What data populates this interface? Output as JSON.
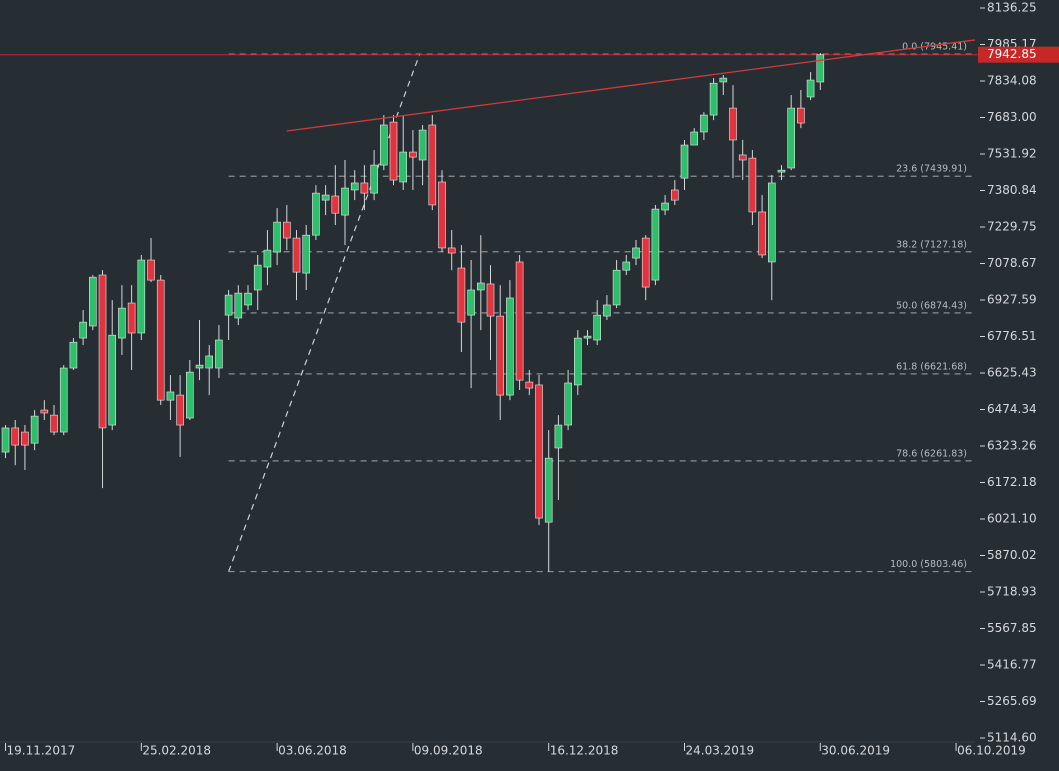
{
  "chart_data": {
    "type": "candlestick",
    "up_color": "#2fbf6c",
    "down_color": "#e2343f",
    "wick_color": "#d8d8d8",
    "open": [
      6298,
      6398,
      6381,
      6335,
      6472,
      6451,
      6381,
      6646,
      6770,
      6820,
      7031,
      6410,
      6770,
      6915,
      6791,
      7093,
      7010,
      6513,
      6534,
      6439,
      6646,
      6646,
      6646,
      6865,
      6853,
      6907,
      6969,
      7064,
      7126,
      7250,
      7184,
      7039,
      7196,
      7341,
      7358,
      7279,
      7383,
      7412,
      7370,
      7486,
      7664,
      7416,
      7540,
      7507,
      7652,
      7416,
      7143,
      7060,
      6865,
      6969,
      6994,
      6861,
      6534,
      7085,
      6588,
      6576,
      6008,
      6315,
      6410,
      6576,
      6770,
      6762,
      6861,
      6907,
      7051,
      7101,
      7184,
      7010,
      7300,
      7383,
      7432,
      7569,
      7623,
      7693,
      7830,
      7722,
      7528,
      7515,
      7292,
      7085,
      7457,
      7474,
      7722,
      7768,
      7830
    ],
    "high": [
      6410,
      6431,
      6410,
      6472,
      6513,
      6493,
      6658,
      6770,
      6886,
      7031,
      7051,
      6927,
      6989,
      6989,
      7114,
      7184,
      7031,
      6617,
      6617,
      6679,
      6845,
      6741,
      6824,
      6969,
      6989,
      6989,
      7114,
      7217,
      7308,
      7321,
      7217,
      7238,
      7403,
      7403,
      7486,
      7507,
      7465,
      7486,
      7548,
      7693,
      7693,
      7693,
      7631,
      7652,
      7693,
      7465,
      7217,
      7155,
      7093,
      7196,
      7072,
      6989,
      7010,
      7114,
      6638,
      6617,
      6389,
      6451,
      6638,
      6803,
      6803,
      6927,
      6948,
      7093,
      7114,
      7176,
      7196,
      7321,
      7362,
      7424,
      7590,
      7639,
      7705,
      7846,
      7859,
      7817,
      7590,
      7548,
      7362,
      7445,
      7486,
      7776,
      7797,
      7871,
      7950
    ],
    "low": [
      6273,
      6244,
      6224,
      6306,
      6431,
      6368,
      6368,
      6638,
      6741,
      6803,
      6149,
      6389,
      6700,
      6638,
      6762,
      7002,
      6493,
      6431,
      6278,
      6431,
      6596,
      6534,
      6605,
      6762,
      6824,
      6886,
      6886,
      6989,
      7072,
      7134,
      6927,
      6969,
      7176,
      7279,
      7238,
      7155,
      7341,
      7300,
      7341,
      7465,
      7403,
      7383,
      7383,
      7403,
      7300,
      7126,
      7051,
      6712,
      6563,
      6803,
      6679,
      6431,
      6513,
      6555,
      6534,
      5996,
      5803,
      6100,
      6389,
      6534,
      6741,
      6741,
      6845,
      6894,
      7031,
      7072,
      6927,
      6989,
      7279,
      7321,
      7383,
      7569,
      7590,
      7672,
      7776,
      7432,
      7424,
      7238,
      7101,
      6927,
      7424,
      7465,
      7639,
      7755,
      7797
    ],
    "close": [
      6398,
      6327,
      6327,
      6447,
      6460,
      6381,
      6646,
      6753,
      6836,
      7022,
      6398,
      6782,
      6894,
      6791,
      7093,
      7010,
      6513,
      6547,
      6410,
      6629,
      6658,
      6696,
      6762,
      6948,
      6956,
      6956,
      7072,
      7134,
      7250,
      7184,
      7043,
      7196,
      7370,
      7362,
      7287,
      7391,
      7412,
      7370,
      7486,
      7652,
      7424,
      7540,
      7519,
      7631,
      7321,
      7143,
      7122,
      6836,
      6969,
      6998,
      6861,
      6534,
      6936,
      6596,
      6563,
      6025,
      6273,
      6410,
      6584,
      6770,
      6778,
      6865,
      6907,
      7051,
      7085,
      7143,
      6981,
      7304,
      7329,
      7341,
      7569,
      7623,
      7693,
      7825,
      7846,
      7590,
      7507,
      7292,
      7114,
      7412,
      7465,
      7722,
      7660,
      7838,
      7942.85
    ],
    "xlim": [
      -0.57,
      99.95
    ],
    "xticks": [
      {
        "value": 0,
        "label": "19.11.2017"
      },
      {
        "value": 14,
        "label": "25.02.2018"
      },
      {
        "value": 28,
        "label": "03.06.2018"
      },
      {
        "value": 42,
        "label": "09.09.2018"
      },
      {
        "value": 56,
        "label": "16.12.2018"
      },
      {
        "value": 70,
        "label": "24.03.2019"
      },
      {
        "value": 84,
        "label": "30.06.2019"
      },
      {
        "value": 98,
        "label": "06.10.2019"
      }
    ],
    "ylim": [
      5114.6,
      8136.25
    ],
    "yticks": [
      8136.25,
      7985.17,
      7834.08,
      {
        "value": 7683,
        "label": "7683.00"
      },
      7531.92,
      7380.84,
      7229.75,
      7078.67,
      6927.59,
      6776.51,
      6625.43,
      6474.34,
      6323.26,
      6172.18,
      {
        "value": 6021.1,
        "label": "6021.10"
      },
      5870.02,
      5718.93,
      5567.85,
      5416.77,
      5265.69,
      {
        "value": 5114.6,
        "label": "5114.60"
      }
    ],
    "fib_levels": [
      {
        "label": "0.0 (7945.41)",
        "value": 7945.41
      },
      {
        "label": "23.6 (7439.91)",
        "value": 7439.91
      },
      {
        "label": "38.2 (7127.18)",
        "value": 7127.18
      },
      {
        "label": "50.0 (6874.43)",
        "value": 6874.43
      },
      {
        "label": "61.8 (6621.68)",
        "value": 6621.68
      },
      {
        "label": "78.6 (6261.83)",
        "value": 6261.83
      },
      {
        "label": "100.0 (5803.46)",
        "value": 5803.46
      }
    ],
    "fib_x": [
      23,
      99.95
    ],
    "fib_diagonal_x": [
      23,
      42.7
    ],
    "trendline": {
      "x": [
        29,
        99.95
      ],
      "y": [
        7627,
        8004
      ],
      "color": "#d23a3a"
    },
    "price_line_color": "#c62828"
  }
}
